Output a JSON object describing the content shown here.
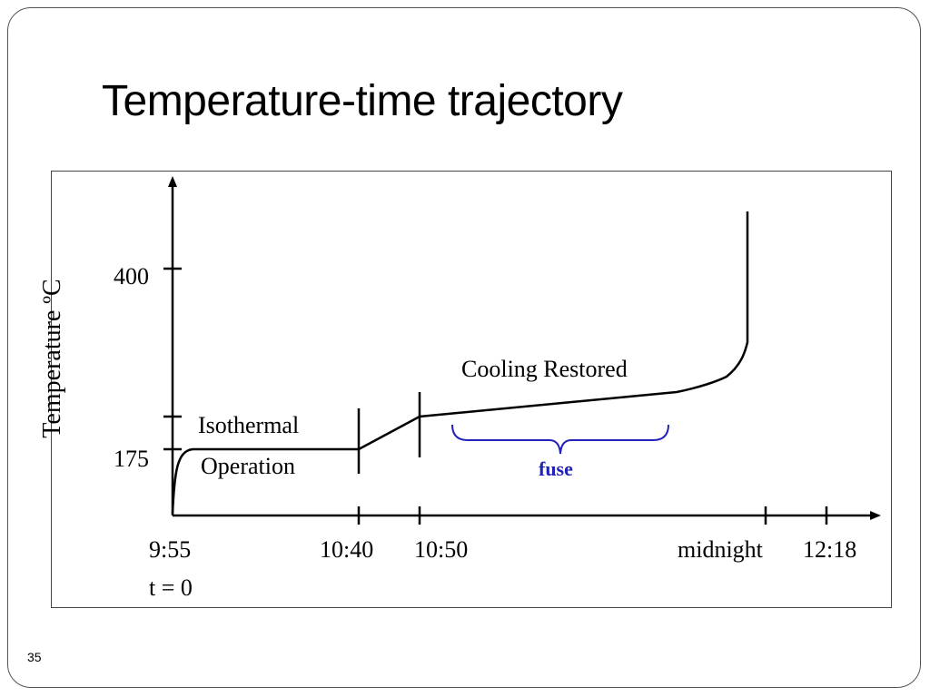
{
  "slide": {
    "title": "Temperature-time trajectory",
    "page_number": "35"
  },
  "axes": {
    "y_label": "Temperature ºC",
    "y_ticks": [
      "400",
      "175"
    ],
    "x_ticks": [
      "9:55",
      "10:40",
      "10:50",
      "midnight",
      "12:18"
    ],
    "x_sublabel": "t = 0"
  },
  "annotations": {
    "isothermal_line1": "Isothermal",
    "isothermal_line2": "Operation",
    "cooling_restored": "Cooling Restored",
    "fuse": "fuse"
  },
  "colors": {
    "curve": "#000000",
    "fuse_brace": "#2222bb"
  }
}
